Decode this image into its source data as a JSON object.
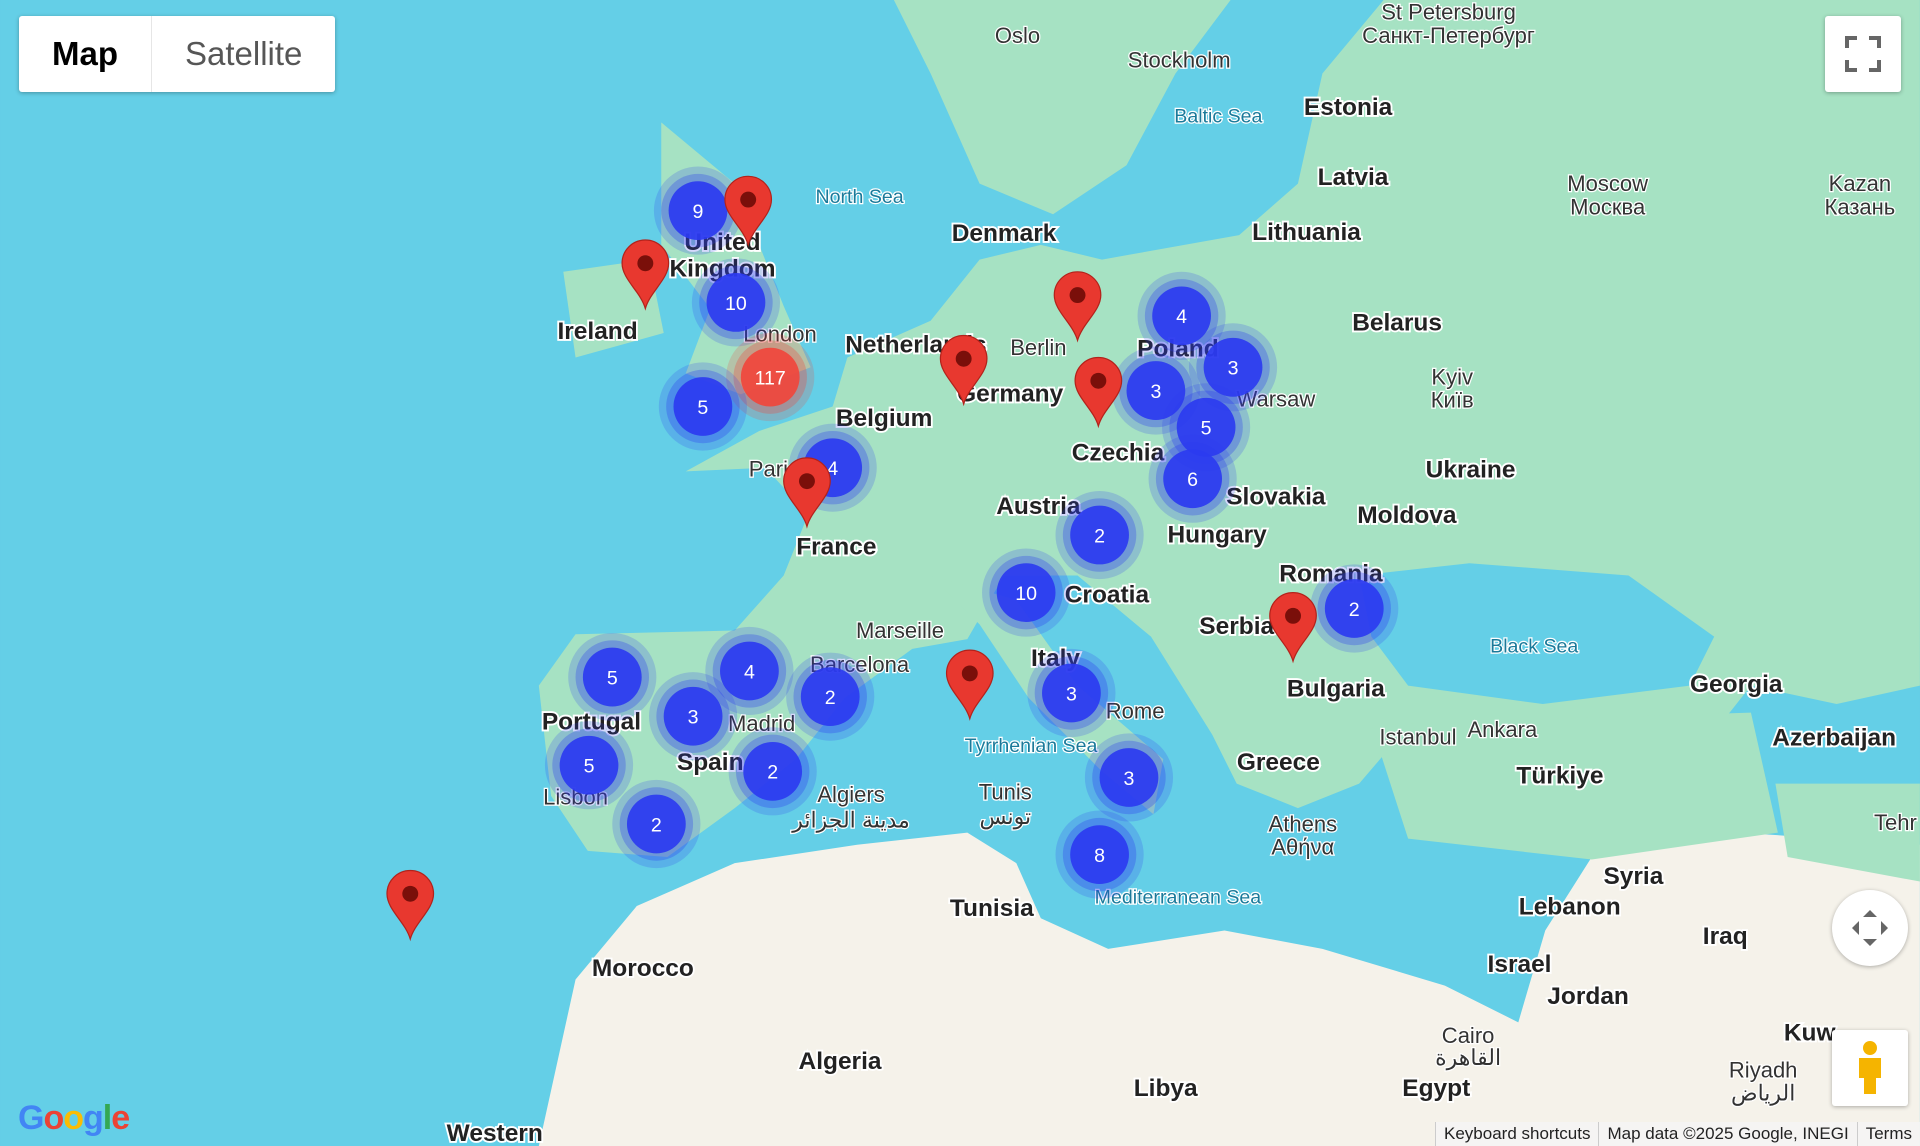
{
  "map_type_control": {
    "map": "Map",
    "satellite": "Satellite",
    "selected": "Map"
  },
  "colors": {
    "water": "#64cfe7",
    "land": "#a6e2c3",
    "desert": "#f5f2ea",
    "cluster": "#2b3bf0",
    "cluster_large": "#f0463c",
    "marker": "#e8382f"
  },
  "labels": {
    "water": [
      "North Sea",
      "Baltic Sea",
      "Black Sea",
      "Tyrrhenian Sea",
      "Mediterranean Sea"
    ],
    "countries": [
      "United",
      "Kingdom",
      "Ireland",
      "Netherlands",
      "Belgium",
      "France",
      "Denmark",
      "Germany",
      "Czechia",
      "Poland",
      "Slovakia",
      "Austria",
      "Hungary",
      "Croatia",
      "Italy",
      "Serbia",
      "Romania",
      "Bulgaria",
      "Greece",
      "Portugal",
      "Spain",
      "Estonia",
      "Latvia",
      "Lithuania",
      "Belarus",
      "Ukraine",
      "Moldova",
      "Georgia",
      "Azerbaijan",
      "Türkiye",
      "Syria",
      "Lebanon",
      "Israel",
      "Jordan",
      "Iraq",
      "Egypt",
      "Libya",
      "Algeria",
      "Tunisia",
      "Morocco",
      "Western",
      "Kuw"
    ],
    "cities": [
      "Oslo",
      "Stockholm",
      "St Petersburg",
      "Санкт-Петербург",
      "Moscow",
      "Москва",
      "Kazan",
      "Казань",
      "Berlin",
      "Warsaw",
      "Kyiv",
      "Київ",
      "London",
      "Paris",
      "Marseille",
      "Barcelona",
      "Madrid",
      "Lisbon",
      "Rome",
      "Algiers",
      "مدينة الجزائر",
      "Tunis",
      "تونس",
      "Istanbul",
      "Ankara",
      "Athens",
      "Αθήνα",
      "Cairo",
      "القاهرة",
      "Riyadh",
      "الرياض",
      "Tehr"
    ]
  },
  "clusters": [
    9,
    10,
    117,
    5,
    4,
    4,
    3,
    3,
    5,
    6,
    2,
    10,
    2,
    5,
    4,
    3,
    2,
    5,
    2,
    2,
    3,
    3,
    8
  ],
  "marker_count": 9,
  "attribution": {
    "shortcuts": "Keyboard shortcuts",
    "data": "Map data ©2025 Google, INEGI",
    "terms": "Terms"
  },
  "logo": "Google"
}
